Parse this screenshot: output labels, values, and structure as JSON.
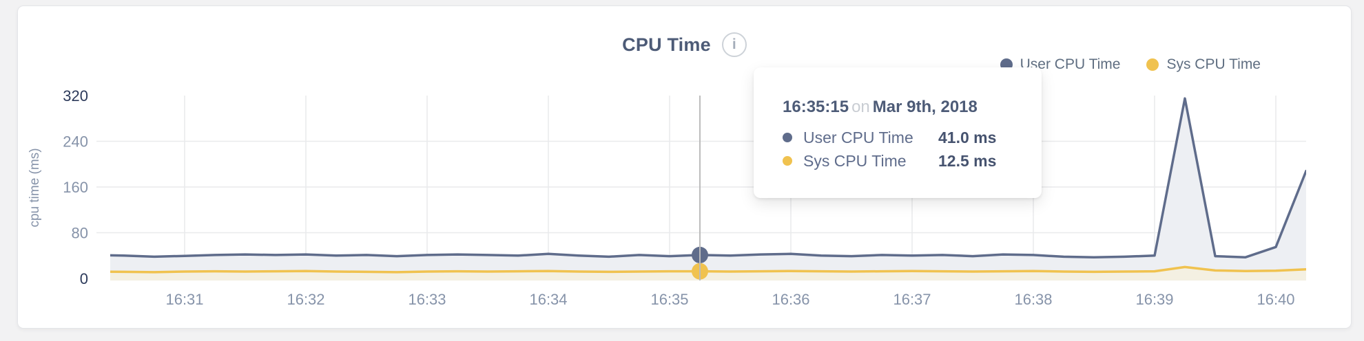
{
  "chart": {
    "title": "CPU Time",
    "info_icon_glyph": "i",
    "legend": [
      {
        "label": "User CPU Time",
        "color": "#5f6c8b"
      },
      {
        "label": "Sys CPU Time",
        "color": "#f0c24f"
      }
    ],
    "tooltip": {
      "time": "16:35:15",
      "conjunction": "on",
      "date": "Mar 9th, 2018",
      "rows": [
        {
          "label": "User CPU Time",
          "value": "41.0 ms",
          "color": "#5f6c8b"
        },
        {
          "label": "Sys CPU Time",
          "value": "12.5 ms",
          "color": "#f0c24f"
        }
      ]
    }
  },
  "chart_data": {
    "type": "area",
    "title": "CPU Time",
    "xlabel": "",
    "ylabel": "cpu time (ms)",
    "ylim": [
      0,
      360
    ],
    "y_ticks": [
      0,
      80,
      160,
      240,
      320
    ],
    "x_tick_labels": [
      "16:31",
      "16:32",
      "16:33",
      "16:34",
      "16:35",
      "16:36",
      "16:37",
      "16:38",
      "16:39",
      "16:40"
    ],
    "grid": true,
    "legend_position": "top-right",
    "x": [
      "16:30:15",
      "16:30:30",
      "16:30:45",
      "16:31:00",
      "16:31:15",
      "16:31:30",
      "16:31:45",
      "16:32:00",
      "16:32:15",
      "16:32:30",
      "16:32:45",
      "16:33:00",
      "16:33:15",
      "16:33:30",
      "16:33:45",
      "16:34:00",
      "16:34:15",
      "16:34:30",
      "16:34:45",
      "16:35:00",
      "16:35:15",
      "16:35:30",
      "16:35:45",
      "16:36:00",
      "16:36:15",
      "16:36:30",
      "16:36:45",
      "16:37:00",
      "16:37:15",
      "16:37:30",
      "16:37:45",
      "16:38:00",
      "16:38:15",
      "16:38:30",
      "16:38:45",
      "16:39:00",
      "16:39:15",
      "16:39:30",
      "16:39:45",
      "16:40:00",
      "16:40:15"
    ],
    "series": [
      {
        "name": "User CPU Time",
        "color": "#5f6c8b",
        "fill": "#edeff3",
        "values": [
          41,
          40,
          38,
          39.5,
          41,
          42,
          41,
          42,
          40,
          41,
          39,
          41,
          42,
          41,
          40,
          43,
          40,
          38,
          41,
          39,
          41,
          40,
          42,
          43,
          40,
          39,
          41,
          40,
          41,
          39,
          42,
          41,
          38,
          37,
          38,
          40,
          315,
          39,
          37,
          55,
          188
        ]
      },
      {
        "name": "Sys CPU Time",
        "color": "#f0c24f",
        "fill": "#f4f0e2",
        "values": [
          12,
          11.5,
          11,
          12,
          12.5,
          12,
          12.5,
          13,
          12,
          11.5,
          11,
          12,
          12.5,
          12,
          12.5,
          13,
          12,
          11.5,
          12,
          12.5,
          12.5,
          12,
          12.5,
          13,
          12.5,
          12,
          12.5,
          13,
          12.5,
          12,
          12.5,
          13,
          12,
          11.5,
          12,
          12.5,
          20,
          14,
          13,
          13.5,
          16
        ]
      }
    ],
    "highlight": {
      "time": "16:35:15",
      "values": {
        "User CPU Time": 41.0,
        "Sys CPU Time": 12.5
      }
    },
    "colors": {
      "grid": "#e9eaec",
      "crosshair": "#bcbcbc",
      "tick_label": "#8693a9",
      "tick_label_emphasis": "#2c3a5a",
      "axis_title": "#8693a9"
    }
  }
}
